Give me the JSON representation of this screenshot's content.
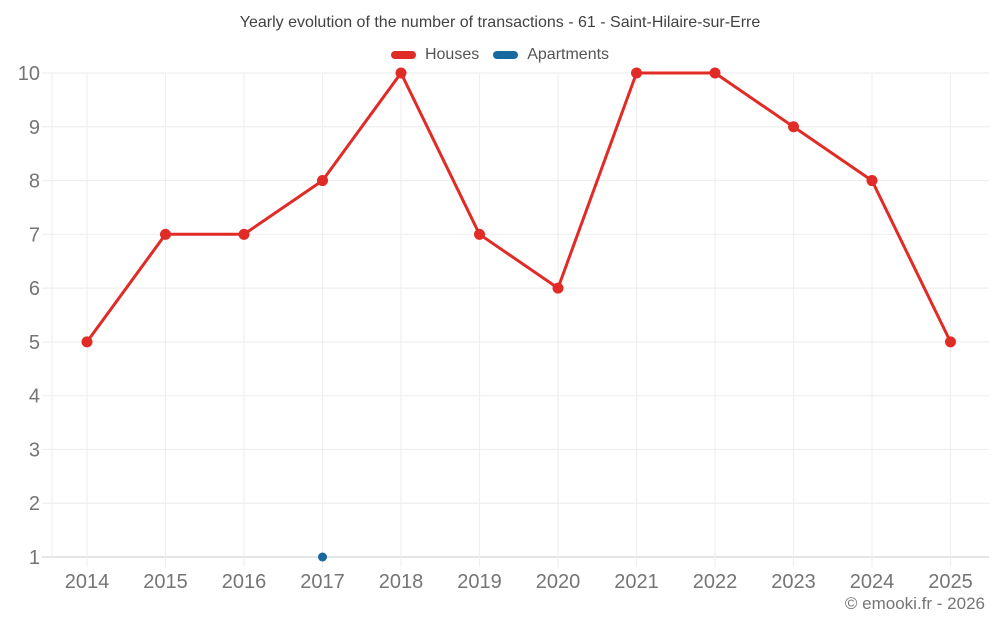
{
  "footer": "© emooki.fr - 2026",
  "colors": {
    "houses": "#e02b27",
    "apartments": "#17699e",
    "grid": "#efefef",
    "axis_line": "#dedede",
    "tick_label": "#757575",
    "title_text": "#424242",
    "legend_text": "#555555",
    "footer_text": "#757575"
  },
  "chart_data": {
    "type": "line",
    "title": "Yearly evolution of the number of transactions - 61 - Saint-Hilaire-sur-Erre",
    "categories": [
      "2014",
      "2015",
      "2016",
      "2017",
      "2018",
      "2019",
      "2020",
      "2021",
      "2022",
      "2023",
      "2024",
      "2025"
    ],
    "series": [
      {
        "name": "Houses",
        "color": "#e02b27",
        "values": [
          5,
          7,
          7,
          8,
          10,
          7,
          6,
          10,
          10,
          9,
          8,
          5
        ]
      },
      {
        "name": "Apartments",
        "color": "#17699e",
        "values": [
          null,
          null,
          null,
          1,
          null,
          null,
          null,
          null,
          null,
          null,
          null,
          null
        ]
      }
    ],
    "xlabel": "",
    "ylabel": "",
    "ylim": [
      1,
      10
    ],
    "yticks": [
      1,
      2,
      3,
      4,
      5,
      6,
      7,
      8,
      9,
      10
    ],
    "grid": true,
    "legend_position": "top"
  }
}
